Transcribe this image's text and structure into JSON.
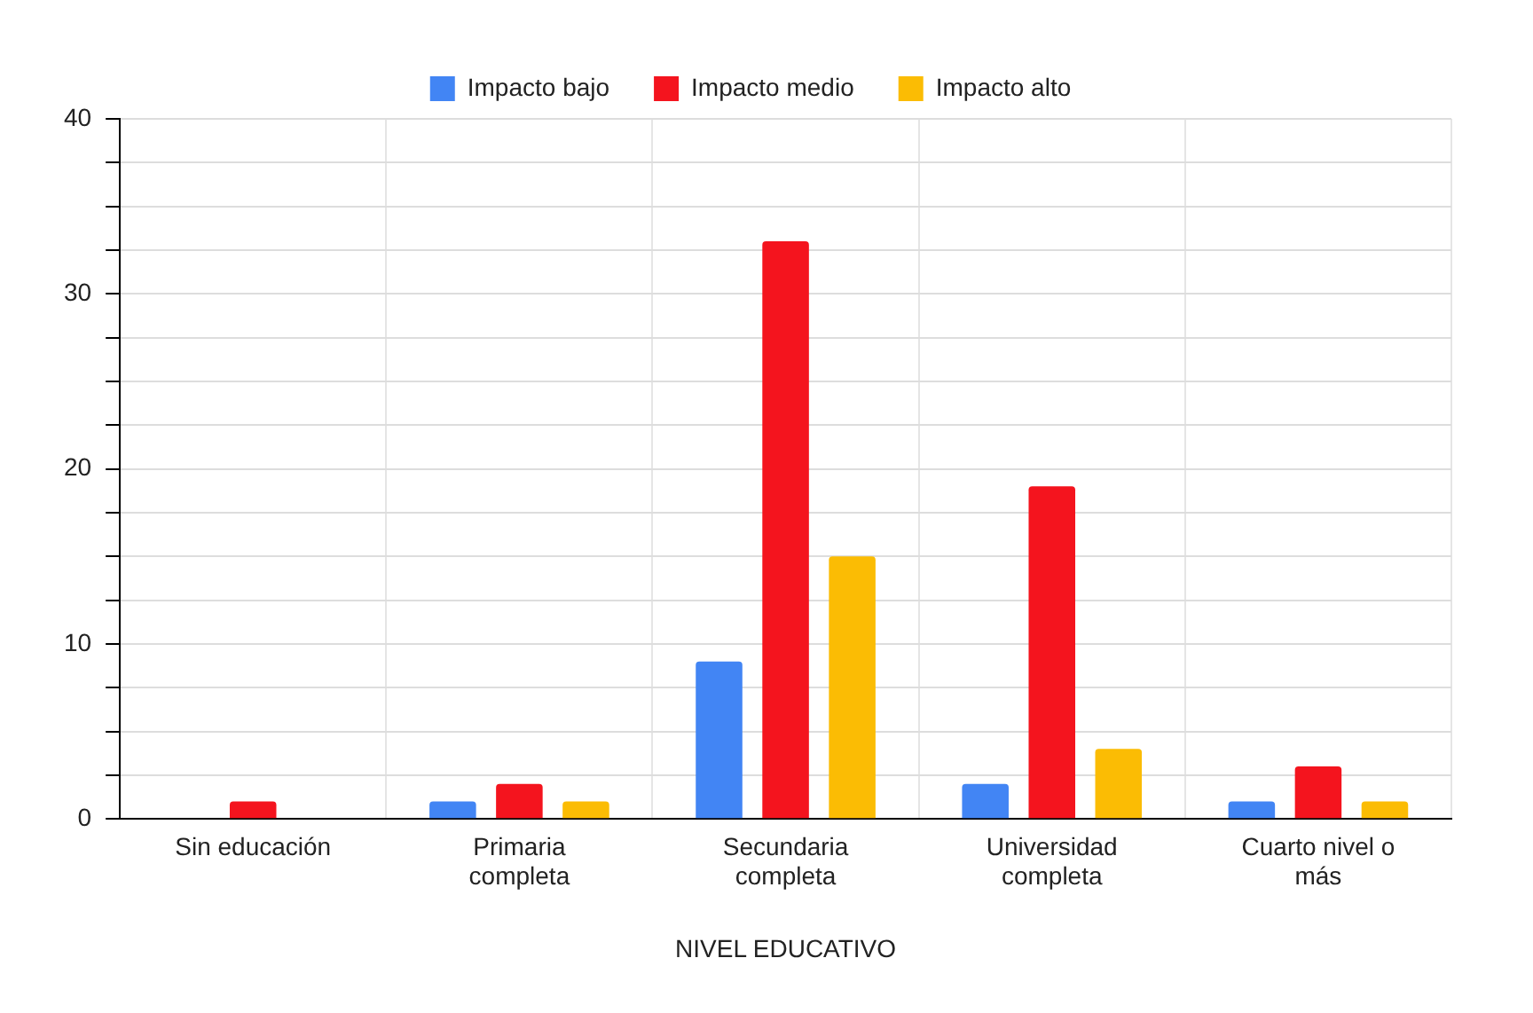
{
  "chart_data": {
    "type": "bar",
    "xlabel": "NIVEL EDUCATIVO",
    "categories": [
      "Sin educación",
      "Primaria completa",
      "Secundaria completa",
      "Universidad completa",
      "Cuarto nivel o más"
    ],
    "series": [
      {
        "name": "Impacto bajo",
        "color": "#4285f4",
        "values": [
          0,
          1,
          9,
          2,
          1
        ]
      },
      {
        "name": "Impacto medio",
        "color": "#f4141e",
        "values": [
          1,
          2,
          33,
          19,
          3
        ]
      },
      {
        "name": "Impacto alto",
        "color": "#fbbc04",
        "values": [
          0,
          1,
          15,
          4,
          1
        ]
      }
    ],
    "ylim": [
      0,
      40
    ],
    "yticks": [
      0,
      {
        "value": 2.5,
        "label": null
      },
      {
        "value": 5,
        "label": null
      },
      {
        "value": 7.5,
        "label": null
      },
      10,
      {
        "value": 12.5,
        "label": null
      },
      {
        "value": 15,
        "label": null
      },
      {
        "value": 17.5,
        "label": null
      },
      20,
      {
        "value": 22.5,
        "label": null
      },
      {
        "value": 25,
        "label": null
      },
      {
        "value": 27.5,
        "label": null
      },
      30,
      {
        "value": 32.5,
        "label": null
      },
      {
        "value": 35,
        "label": null
      },
      {
        "value": 37.5,
        "label": null
      },
      40
    ],
    "grid": true,
    "legend": "top"
  }
}
